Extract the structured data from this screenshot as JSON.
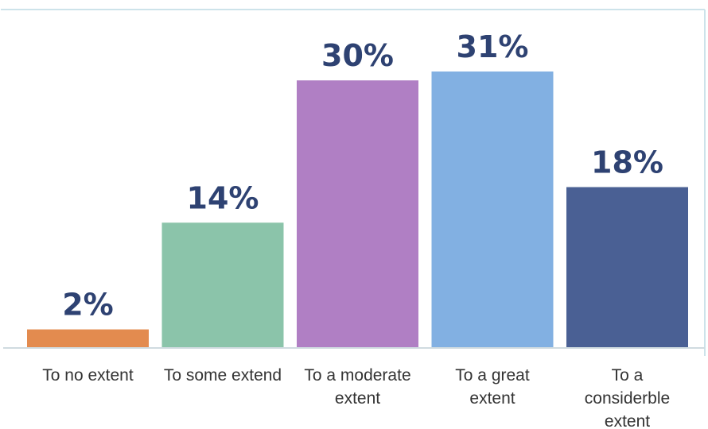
{
  "chart_data": {
    "type": "bar",
    "categories": [
      [
        "To no extent"
      ],
      [
        "To some extend"
      ],
      [
        "To a moderate",
        "extent"
      ],
      [
        "To a great",
        "extent"
      ],
      [
        "To a",
        "considerble",
        "extent"
      ]
    ],
    "values": [
      2,
      14,
      30,
      31,
      18
    ],
    "value_labels": [
      "2%",
      "14%",
      "30%",
      "31%",
      "18%"
    ],
    "colors": [
      "#e38b4f",
      "#8bc4aa",
      "#b07fc4",
      "#82b0e2",
      "#4a6094"
    ],
    "value_label_color": "#2e4272",
    "frame_color": "#cde3ea",
    "ylim": [
      0,
      31
    ],
    "title": "",
    "xlabel": "",
    "ylabel": "",
    "grid": false,
    "legend": "none"
  }
}
